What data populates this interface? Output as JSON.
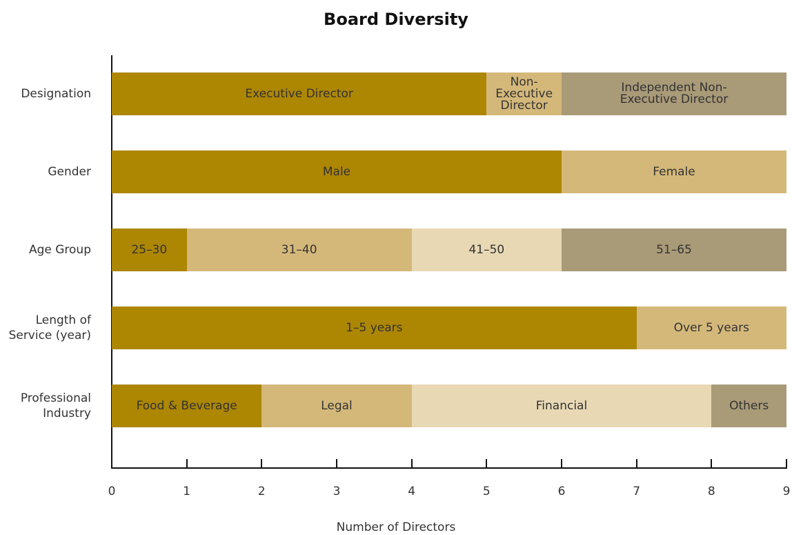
{
  "chart_data": {
    "type": "stacked-bar-horizontal",
    "title": "Board Diversity",
    "x_label": "Number of Directors",
    "xlim": [
      0,
      9
    ],
    "xticks": [
      0,
      1,
      2,
      3,
      4,
      5,
      6,
      7,
      8,
      9
    ],
    "rows": [
      {
        "label": "Designation",
        "segments": [
          {
            "name": "Executive Director",
            "value": 5,
            "color": "#ad8602"
          },
          {
            "name": "Non-Executive Director",
            "value": 1,
            "color": "#d4b87a"
          },
          {
            "name": "Independent Non-Executive Director",
            "value": 3,
            "color": "#a99a78"
          }
        ]
      },
      {
        "label": "Gender",
        "segments": [
          {
            "name": "Male",
            "value": 6,
            "color": "#ad8602"
          },
          {
            "name": "Female",
            "value": 3,
            "color": "#d4b87a"
          }
        ]
      },
      {
        "label": "Age Group",
        "segments": [
          {
            "name": "25–30",
            "value": 1,
            "color": "#ad8602"
          },
          {
            "name": "31–40",
            "value": 3,
            "color": "#d4b87a"
          },
          {
            "name": "41–50",
            "value": 2,
            "color": "#e8d8b4"
          },
          {
            "name": "51–65",
            "value": 3,
            "color": "#a99a78"
          }
        ]
      },
      {
        "label": "Length of Service (year)",
        "segments": [
          {
            "name": "1–5 years",
            "value": 7,
            "color": "#ad8602"
          },
          {
            "name": "Over 5 years",
            "value": 2,
            "color": "#d4b87a"
          }
        ]
      },
      {
        "label": "Professional Industry",
        "segments": [
          {
            "name": "Food & Beverage",
            "value": 2,
            "color": "#ad8602"
          },
          {
            "name": "Legal",
            "value": 2,
            "color": "#d4b87a"
          },
          {
            "name": "Financial",
            "value": 4,
            "color": "#e8d8b4"
          },
          {
            "name": "Others",
            "value": 1,
            "color": "#a99a78"
          }
        ]
      }
    ]
  }
}
